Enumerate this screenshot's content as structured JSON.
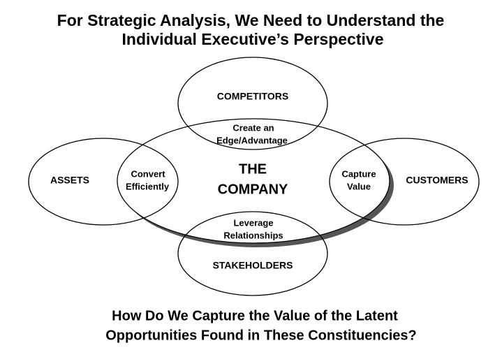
{
  "header": {
    "title": [
      "For Strategic Analysis, We Need to Understand the",
      "Individual Executive’s Perspective"
    ]
  },
  "center": {
    "label": [
      "THE",
      "COMPANY"
    ]
  },
  "nodes": [
    {
      "label": [
        "COMPETITORS"
      ]
    },
    {
      "label": [
        "ASSETS"
      ]
    },
    {
      "label": [
        "CUSTOMERS"
      ]
    },
    {
      "label": [
        "STAKEHOLDERS"
      ]
    }
  ],
  "overlaps": [
    {
      "label": [
        "Create an",
        "Edge/Advantage"
      ]
    },
    {
      "label": [
        "Convert",
        "Efficiently"
      ]
    },
    {
      "label": [
        "Capture",
        "Value"
      ]
    },
    {
      "label": [
        "Leverage",
        "Relationships"
      ]
    }
  ],
  "footer": {
    "question": [
      "How Do We Capture the Value of the Latent",
      "Opportunities Found in These Constituencies?"
    ]
  }
}
